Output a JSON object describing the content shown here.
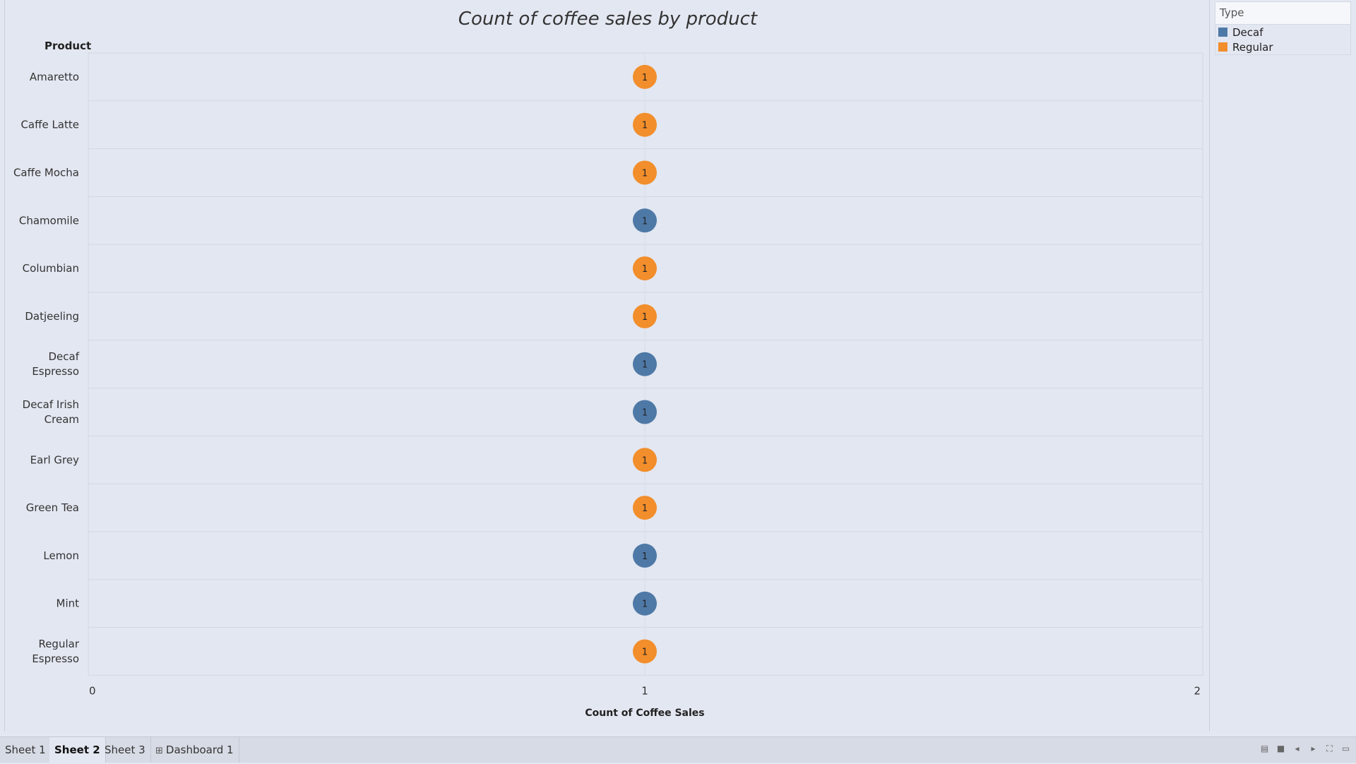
{
  "chart_data": {
    "type": "scatter",
    "title": "Count of coffee sales by product",
    "row_header": "Product",
    "xlabel": "Count of Coffee Sales",
    "xlim": [
      0,
      2
    ],
    "xticks": [
      0,
      1,
      2
    ],
    "categories": [
      "Amaretto",
      "Caffe Latte",
      "Caffe Mocha",
      "Chamomile",
      "Columbian",
      "Datjeeling",
      "Decaf Espresso",
      "Decaf Irish Cream",
      "Earl Grey",
      "Green Tea",
      "Lemon",
      "Mint",
      "Regular Espresso"
    ],
    "category_lines": [
      [
        "Amaretto"
      ],
      [
        "Caffe Latte"
      ],
      [
        "Caffe Mocha"
      ],
      [
        "Chamomile"
      ],
      [
        "Columbian"
      ],
      [
        "Datjeeling"
      ],
      [
        "Decaf",
        "Espresso"
      ],
      [
        "Decaf Irish",
        "Cream"
      ],
      [
        "Earl Grey"
      ],
      [
        "Green Tea"
      ],
      [
        "Lemon"
      ],
      [
        "Mint"
      ],
      [
        "Regular",
        "Espresso"
      ]
    ],
    "values": [
      1,
      1,
      1,
      1,
      1,
      1,
      1,
      1,
      1,
      1,
      1,
      1,
      1
    ],
    "types": [
      "Regular",
      "Regular",
      "Regular",
      "Decaf",
      "Regular",
      "Regular",
      "Decaf",
      "Decaf",
      "Regular",
      "Regular",
      "Decaf",
      "Decaf",
      "Regular"
    ],
    "colors": {
      "Decaf": "#4e79a7",
      "Regular": "#f28e2b"
    },
    "grid": true
  },
  "legend": {
    "title": "Type",
    "items": [
      {
        "label": "Decaf",
        "color": "#4e79a7"
      },
      {
        "label": "Regular",
        "color": "#f28e2b"
      }
    ]
  },
  "tabs": [
    {
      "label": "Sheet 1",
      "active": false,
      "icon": ""
    },
    {
      "label": "Sheet 2",
      "active": true,
      "icon": ""
    },
    {
      "label": "Sheet 3",
      "active": false,
      "icon": ""
    },
    {
      "label": "Dashboard 1",
      "active": false,
      "icon": "grid-icon"
    }
  ]
}
